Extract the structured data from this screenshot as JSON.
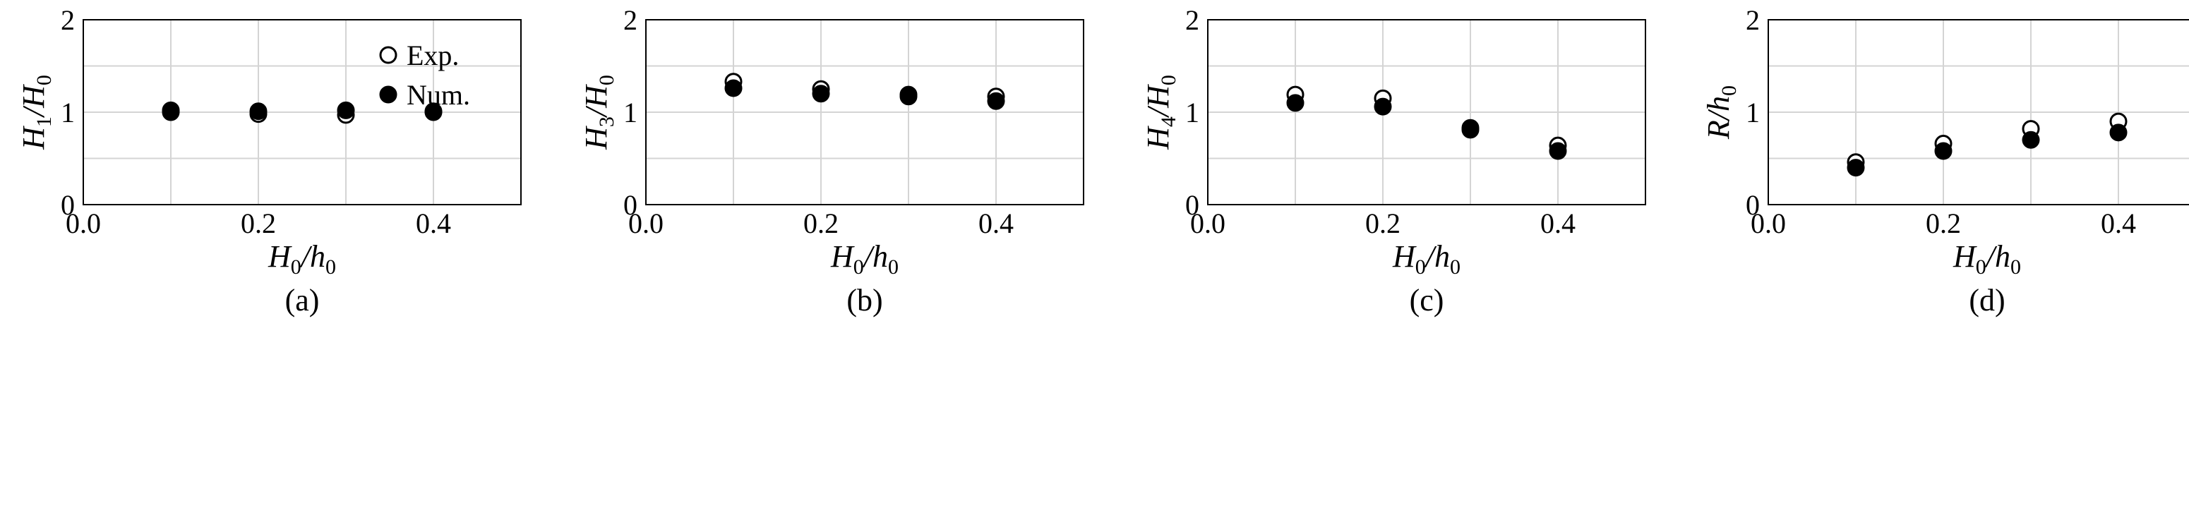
{
  "legend": {
    "exp_label": "Exp.",
    "num_label": "Num."
  },
  "chart_data": [
    {
      "type": "scatter",
      "panel_label": "(a)",
      "xlabel": {
        "main": "H",
        "sub": "0",
        "slash": "/",
        "main2": "h",
        "sub2": "0"
      },
      "ylabel": {
        "main": "H",
        "sub": "1",
        "slash": "/",
        "main2": "H",
        "sub2": "0"
      },
      "xlim": [
        0.0,
        0.5
      ],
      "ylim": [
        0,
        2
      ],
      "xticks": [
        "0.0",
        "0.2",
        "0.4"
      ],
      "yticks": [
        "0",
        "1",
        "2"
      ],
      "grid": true,
      "series": [
        {
          "name": "Exp.",
          "marker": "open-circle",
          "x": [
            0.1,
            0.2,
            0.3,
            0.4
          ],
          "y": [
            1.02,
            0.98,
            0.97,
            1.01
          ]
        },
        {
          "name": "Num.",
          "marker": "filled-circle",
          "x": [
            0.1,
            0.2,
            0.3,
            0.4
          ],
          "y": [
            1.0,
            1.01,
            1.02,
            1.0
          ]
        }
      ]
    },
    {
      "type": "scatter",
      "panel_label": "(b)",
      "xlabel": {
        "main": "H",
        "sub": "0",
        "slash": "/",
        "main2": "h",
        "sub2": "0"
      },
      "ylabel": {
        "main": "H",
        "sub": "3",
        "slash": "/",
        "main2": "H",
        "sub2": "0"
      },
      "xlim": [
        0.0,
        0.5
      ],
      "ylim": [
        0,
        2
      ],
      "xticks": [
        "0.0",
        "0.2",
        "0.4"
      ],
      "yticks": [
        "0",
        "1",
        "2"
      ],
      "grid": true,
      "series": [
        {
          "name": "Exp.",
          "marker": "open-circle",
          "x": [
            0.1,
            0.2,
            0.3,
            0.4
          ],
          "y": [
            1.33,
            1.25,
            1.19,
            1.17
          ]
        },
        {
          "name": "Num.",
          "marker": "filled-circle",
          "x": [
            0.1,
            0.2,
            0.3,
            0.4
          ],
          "y": [
            1.26,
            1.2,
            1.17,
            1.12
          ]
        }
      ]
    },
    {
      "type": "scatter",
      "panel_label": "(c)",
      "xlabel": {
        "main": "H",
        "sub": "0",
        "slash": "/",
        "main2": "h",
        "sub2": "0"
      },
      "ylabel": {
        "main": "H",
        "sub": "4",
        "slash": "/",
        "main2": "H",
        "sub2": "0"
      },
      "xlim": [
        0.0,
        0.5
      ],
      "ylim": [
        0,
        2
      ],
      "xticks": [
        "0.0",
        "0.2",
        "0.4"
      ],
      "yticks": [
        "0",
        "1",
        "2"
      ],
      "grid": true,
      "series": [
        {
          "name": "Exp.",
          "marker": "open-circle",
          "x": [
            0.1,
            0.2,
            0.3,
            0.4
          ],
          "y": [
            1.19,
            1.15,
            0.83,
            0.64
          ]
        },
        {
          "name": "Num.",
          "marker": "filled-circle",
          "x": [
            0.1,
            0.2,
            0.3,
            0.4
          ],
          "y": [
            1.1,
            1.06,
            0.81,
            0.58
          ]
        }
      ]
    },
    {
      "type": "scatter",
      "panel_label": "(d)",
      "xlabel": {
        "main": "H",
        "sub": "0",
        "slash": "/",
        "main2": "h",
        "sub2": "0"
      },
      "ylabel": {
        "main": "R",
        "sub": "",
        "slash": "/",
        "main2": "h",
        "sub2": "0"
      },
      "xlim": [
        0.0,
        0.5
      ],
      "ylim": [
        0,
        2
      ],
      "xticks": [
        "0.0",
        "0.2",
        "0.4"
      ],
      "yticks": [
        "0",
        "1",
        "2"
      ],
      "grid": true,
      "series": [
        {
          "name": "Exp.",
          "marker": "open-circle",
          "x": [
            0.1,
            0.2,
            0.3,
            0.4
          ],
          "y": [
            0.46,
            0.66,
            0.82,
            0.9
          ]
        },
        {
          "name": "Num.",
          "marker": "filled-circle",
          "x": [
            0.1,
            0.2,
            0.3,
            0.4
          ],
          "y": [
            0.4,
            0.58,
            0.7,
            0.78
          ]
        }
      ]
    }
  ]
}
